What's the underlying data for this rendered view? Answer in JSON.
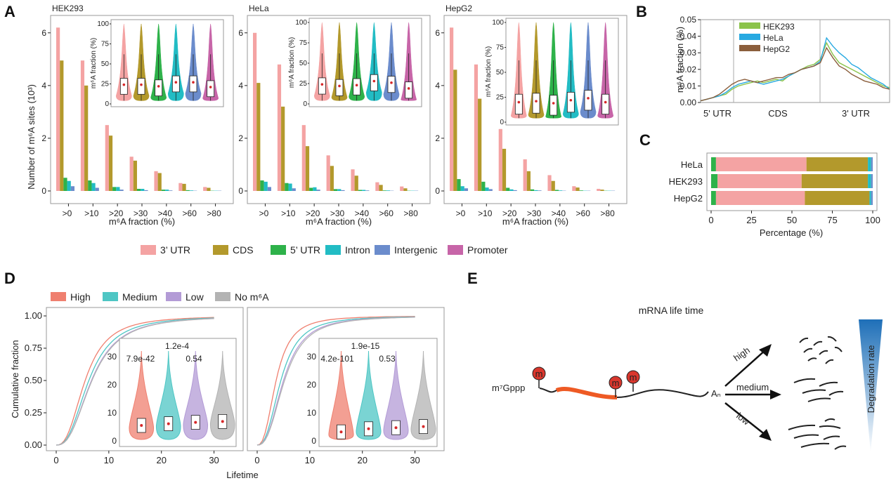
{
  "colors": {
    "utr3": "#f4a3a3",
    "cds": "#b3992c",
    "utr5": "#2eb24a",
    "intron": "#22bcc4",
    "intergenic": "#6b8ccc",
    "promoter": "#c765a8",
    "high": "#ef7f6f",
    "medium": "#4ec6c4",
    "low": "#b39bd6",
    "nom6a": "#b3b3b3",
    "hek": "#8bc34a",
    "hela": "#27a9e1",
    "hepg2": "#8b5e3c"
  },
  "panels": {
    "a": "A",
    "b": "B",
    "c": "C",
    "d": "D",
    "e": "E"
  },
  "panel_a": {
    "ylabel": "Number of m⁶A sites (10³)",
    "xlabel": "m⁶A fraction (%)",
    "inset_ylabel": "m⁶A fraction (%)",
    "legend": [
      "3’ UTR",
      "CDS",
      "5’ UTR",
      "Intron",
      "Intergenic",
      "Promoter"
    ]
  },
  "panel_b": {
    "ylabel": "m⁶A fraction (%)",
    "regions": [
      "5' UTR",
      "CDS",
      "3' UTR"
    ]
  },
  "panel_c": {
    "xlabel": "Percentage (%)"
  },
  "panel_d": {
    "ylabel": "Cumulative fraction",
    "xlabel": "Lifetime",
    "legend": [
      "High",
      "Medium",
      "Low",
      "No m⁶A"
    ]
  },
  "panel_e": {
    "title": "mRNA life time",
    "cap": "m⁷Gppp",
    "tail": "Aₙ",
    "mark": "m",
    "arrows": [
      "high",
      "medium",
      "low"
    ],
    "gradient_label": "Degradation rate"
  },
  "chart_data": [
    {
      "id": "A",
      "type": "bar",
      "title": "HEK293",
      "categories": [
        ">0",
        ">10",
        ">20",
        ">30",
        ">40",
        ">60",
        ">80"
      ],
      "ylim": [
        0,
        6.5
      ],
      "yticks": [
        0,
        2,
        4,
        6
      ],
      "series": [
        {
          "name": "3' UTR",
          "values": [
            6.2,
            4.95,
            2.5,
            1.3,
            0.75,
            0.3,
            0.15
          ]
        },
        {
          "name": "CDS",
          "values": [
            4.95,
            4.0,
            2.1,
            1.15,
            0.68,
            0.27,
            0.12
          ]
        },
        {
          "name": "5' UTR",
          "values": [
            0.5,
            0.4,
            0.15,
            0.08,
            0.05,
            0.03,
            0.01
          ]
        },
        {
          "name": "Intron",
          "values": [
            0.38,
            0.3,
            0.15,
            0.08,
            0.05,
            0.02,
            0.01
          ]
        },
        {
          "name": "Intergenic",
          "values": [
            0.18,
            0.12,
            0.05,
            0.03,
            0.02,
            0.01,
            0.01
          ]
        }
      ]
    },
    {
      "id": "A",
      "type": "bar",
      "title": "HeLa",
      "categories": [
        ">0",
        ">10",
        ">20",
        ">30",
        ">40",
        ">60",
        ">80"
      ],
      "ylim": [
        0,
        6.5
      ],
      "yticks": [
        0,
        2,
        4,
        6
      ],
      "series": [
        {
          "name": "3' UTR",
          "values": [
            6.0,
            4.8,
            2.5,
            1.35,
            0.82,
            0.33,
            0.17
          ]
        },
        {
          "name": "CDS",
          "values": [
            4.1,
            3.2,
            1.7,
            0.95,
            0.58,
            0.23,
            0.1
          ]
        },
        {
          "name": "5' UTR",
          "values": [
            0.4,
            0.3,
            0.12,
            0.07,
            0.04,
            0.02,
            0.01
          ]
        },
        {
          "name": "Intron",
          "values": [
            0.35,
            0.28,
            0.14,
            0.07,
            0.04,
            0.02,
            0.01
          ]
        },
        {
          "name": "Intergenic",
          "values": [
            0.15,
            0.1,
            0.05,
            0.03,
            0.02,
            0.01,
            0.01
          ]
        }
      ]
    },
    {
      "id": "A",
      "type": "bar",
      "title": "HepG2",
      "categories": [
        ">0",
        ">10",
        ">20",
        ">30",
        ">40",
        ">60",
        ">80"
      ],
      "ylim": [
        0,
        6.5
      ],
      "yticks": [
        0,
        2,
        4,
        6
      ],
      "series": [
        {
          "name": "3' UTR",
          "values": [
            6.2,
            4.8,
            2.35,
            1.2,
            0.6,
            0.18,
            0.08
          ]
        },
        {
          "name": "CDS",
          "values": [
            4.6,
            3.5,
            1.6,
            0.75,
            0.38,
            0.13,
            0.05
          ]
        },
        {
          "name": "5' UTR",
          "values": [
            0.45,
            0.35,
            0.12,
            0.06,
            0.04,
            0.02,
            0.01
          ]
        },
        {
          "name": "Intron",
          "values": [
            0.18,
            0.13,
            0.06,
            0.03,
            0.02,
            0.01,
            0.01
          ]
        },
        {
          "name": "Intergenic",
          "values": [
            0.1,
            0.07,
            0.03,
            0.02,
            0.01,
            0.01,
            0.01
          ]
        }
      ]
    },
    {
      "id": "A-inset",
      "type": "violin",
      "categories": [
        "3' UTR",
        "CDS",
        "5' UTR",
        "Intron",
        "Intergenic",
        "Promoter"
      ],
      "ylim": [
        0,
        100
      ],
      "yticks": [
        0,
        25,
        50,
        75,
        100
      ],
      "means": {
        "HEK293": [
          24,
          24,
          22,
          27,
          27,
          21
        ],
        "HeLa": [
          24,
          22,
          23,
          28,
          26,
          19
        ],
        "HepG2": [
          20,
          21,
          19,
          22,
          24,
          20
        ]
      }
    },
    {
      "id": "B",
      "type": "line",
      "ylabel": "m6A fraction (%)",
      "ylim": [
        0,
        0.05
      ],
      "yticks": [
        0.0,
        0.01,
        0.02,
        0.03,
        0.04,
        0.05
      ],
      "x": [
        0,
        0.1,
        0.2,
        0.3,
        0.4,
        0.5,
        0.6,
        0.7,
        0.8,
        0.9,
        1.0,
        1.1,
        1.2,
        1.3,
        1.4,
        1.5,
        1.6,
        1.7,
        1.8,
        1.9,
        2.0,
        2.1,
        2.2,
        2.3,
        2.4,
        2.5,
        2.6,
        2.7,
        2.8,
        2.9,
        3.0
      ],
      "series": [
        {
          "name": "HEK293",
          "values": [
            0.001,
            0.002,
            0.003,
            0.004,
            0.005,
            0.008,
            0.01,
            0.011,
            0.012,
            0.013,
            0.012,
            0.013,
            0.014,
            0.013,
            0.016,
            0.018,
            0.02,
            0.022,
            0.023,
            0.026,
            0.036,
            0.029,
            0.024,
            0.022,
            0.02,
            0.018,
            0.016,
            0.014,
            0.012,
            0.01,
            0.009
          ]
        },
        {
          "name": "HeLa",
          "values": [
            0.001,
            0.002,
            0.003,
            0.004,
            0.006,
            0.009,
            0.011,
            0.012,
            0.013,
            0.012,
            0.011,
            0.012,
            0.013,
            0.014,
            0.016,
            0.018,
            0.02,
            0.021,
            0.022,
            0.025,
            0.039,
            0.034,
            0.03,
            0.027,
            0.023,
            0.021,
            0.018,
            0.015,
            0.013,
            0.011,
            0.008
          ]
        },
        {
          "name": "HepG2",
          "values": [
            0.001,
            0.002,
            0.003,
            0.005,
            0.008,
            0.011,
            0.013,
            0.014,
            0.013,
            0.012,
            0.013,
            0.014,
            0.015,
            0.015,
            0.017,
            0.018,
            0.02,
            0.021,
            0.022,
            0.024,
            0.033,
            0.027,
            0.022,
            0.02,
            0.017,
            0.015,
            0.013,
            0.012,
            0.011,
            0.009,
            0.008
          ]
        }
      ]
    },
    {
      "id": "C",
      "type": "bar",
      "orientation": "horizontal",
      "stacked": true,
      "categories": [
        "HeLa",
        "HEK293",
        "HepG2"
      ],
      "xlim": [
        0,
        100
      ],
      "xticks": [
        0,
        25,
        50,
        75,
        100
      ],
      "series": [
        {
          "name": "5' UTR",
          "values": [
            3,
            4,
            3
          ]
        },
        {
          "name": "3' UTR",
          "values": [
            56,
            52,
            55
          ]
        },
        {
          "name": "CDS",
          "values": [
            38,
            41,
            40
          ]
        },
        {
          "name": "Intron",
          "values": [
            2,
            2,
            1
          ]
        },
        {
          "name": "Intergenic",
          "values": [
            1,
            1,
            1
          ]
        }
      ]
    },
    {
      "id": "D",
      "type": "line",
      "subtype": "cdf",
      "xlim": [
        0,
        35
      ],
      "ylim": [
        0,
        1
      ],
      "xticks": [
        0,
        10,
        20,
        30
      ],
      "yticks": [
        0.0,
        0.25,
        0.5,
        0.75,
        1.0
      ],
      "panels": [
        {
          "series": [
            {
              "name": "High",
              "median": 5.5
            },
            {
              "name": "Medium",
              "median": 6.2
            },
            {
              "name": "Low",
              "median": 6.7
            },
            {
              "name": "No m6A",
              "median": 6.8
            }
          ]
        },
        {
          "series": [
            {
              "name": "High",
              "median": 3.6
            },
            {
              "name": "Medium",
              "median": 4.5
            },
            {
              "name": "Low",
              "median": 5.0
            },
            {
              "name": "No m6A",
              "median": 5.2
            }
          ]
        }
      ]
    },
    {
      "id": "D-inset",
      "type": "violin",
      "categories": [
        "High",
        "Medium",
        "Low",
        "No m6A"
      ],
      "ylim": [
        0,
        35
      ],
      "yticks": [
        0,
        10,
        20,
        30
      ],
      "panels": [
        {
          "means": [
            5.5,
            6.1,
            6.6,
            6.9
          ],
          "pvalues": [
            "7.9e-42",
            "1.2e-4",
            "0.54"
          ]
        },
        {
          "means": [
            3.2,
            4.3,
            4.7,
            5.1
          ],
          "pvalues": [
            "4.2e-101",
            "1.9e-15",
            "0.53"
          ]
        }
      ]
    }
  ]
}
